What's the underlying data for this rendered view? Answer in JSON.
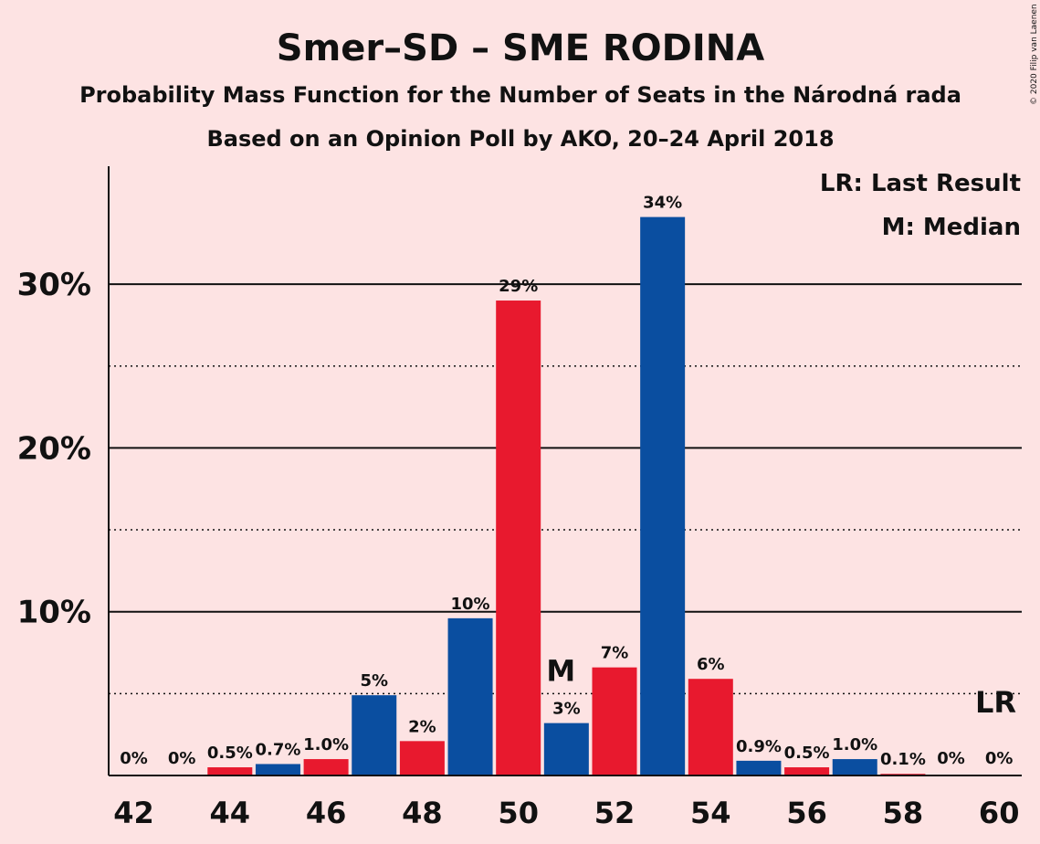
{
  "title": "Smer–SD – SME RODINA",
  "subtitle1": "Probability Mass Function for the Number of Seats in the Národná rada",
  "subtitle2": "Based on an Opinion Poll by AKO, 20–24 April 2018",
  "copyright": "© 2020 Filip van Laenen",
  "legend": {
    "lr": "LR: Last Result",
    "m": "M: Median"
  },
  "colors": {
    "background": "#FDE3E3",
    "blue": "#0A4EA0",
    "red": "#E8192E"
  },
  "chart_data": {
    "type": "bar",
    "x": [
      42,
      43,
      44,
      45,
      46,
      47,
      48,
      49,
      50,
      51,
      52,
      53,
      54,
      55,
      56,
      57,
      58,
      59,
      60
    ],
    "values": [
      0,
      0,
      0.5,
      0.7,
      1.0,
      4.9,
      2.1,
      9.6,
      29.0,
      3.2,
      6.6,
      34.1,
      5.9,
      0.9,
      0.5,
      1.0,
      0.1,
      0,
      0
    ],
    "labels": [
      "0%",
      "0%",
      "0.5%",
      "0.7%",
      "1.0%",
      "5%",
      "2%",
      "10%",
      "29%",
      "3%",
      "7%",
      "34%",
      "6%",
      "0.9%",
      "0.5%",
      "1.0%",
      "0.1%",
      "0%",
      "0%"
    ],
    "x_tick_labels": [
      "42",
      "44",
      "46",
      "48",
      "50",
      "52",
      "54",
      "56",
      "58",
      "60"
    ],
    "y_tick_labels": [
      "10%",
      "20%",
      "30%"
    ],
    "ylim": [
      0,
      37
    ],
    "median_seat": 51,
    "median_marker": "M",
    "last_result_seat": 60,
    "last_result_marker": "LR",
    "grid": "solid at 10% steps, dotted at 5% offsets"
  }
}
